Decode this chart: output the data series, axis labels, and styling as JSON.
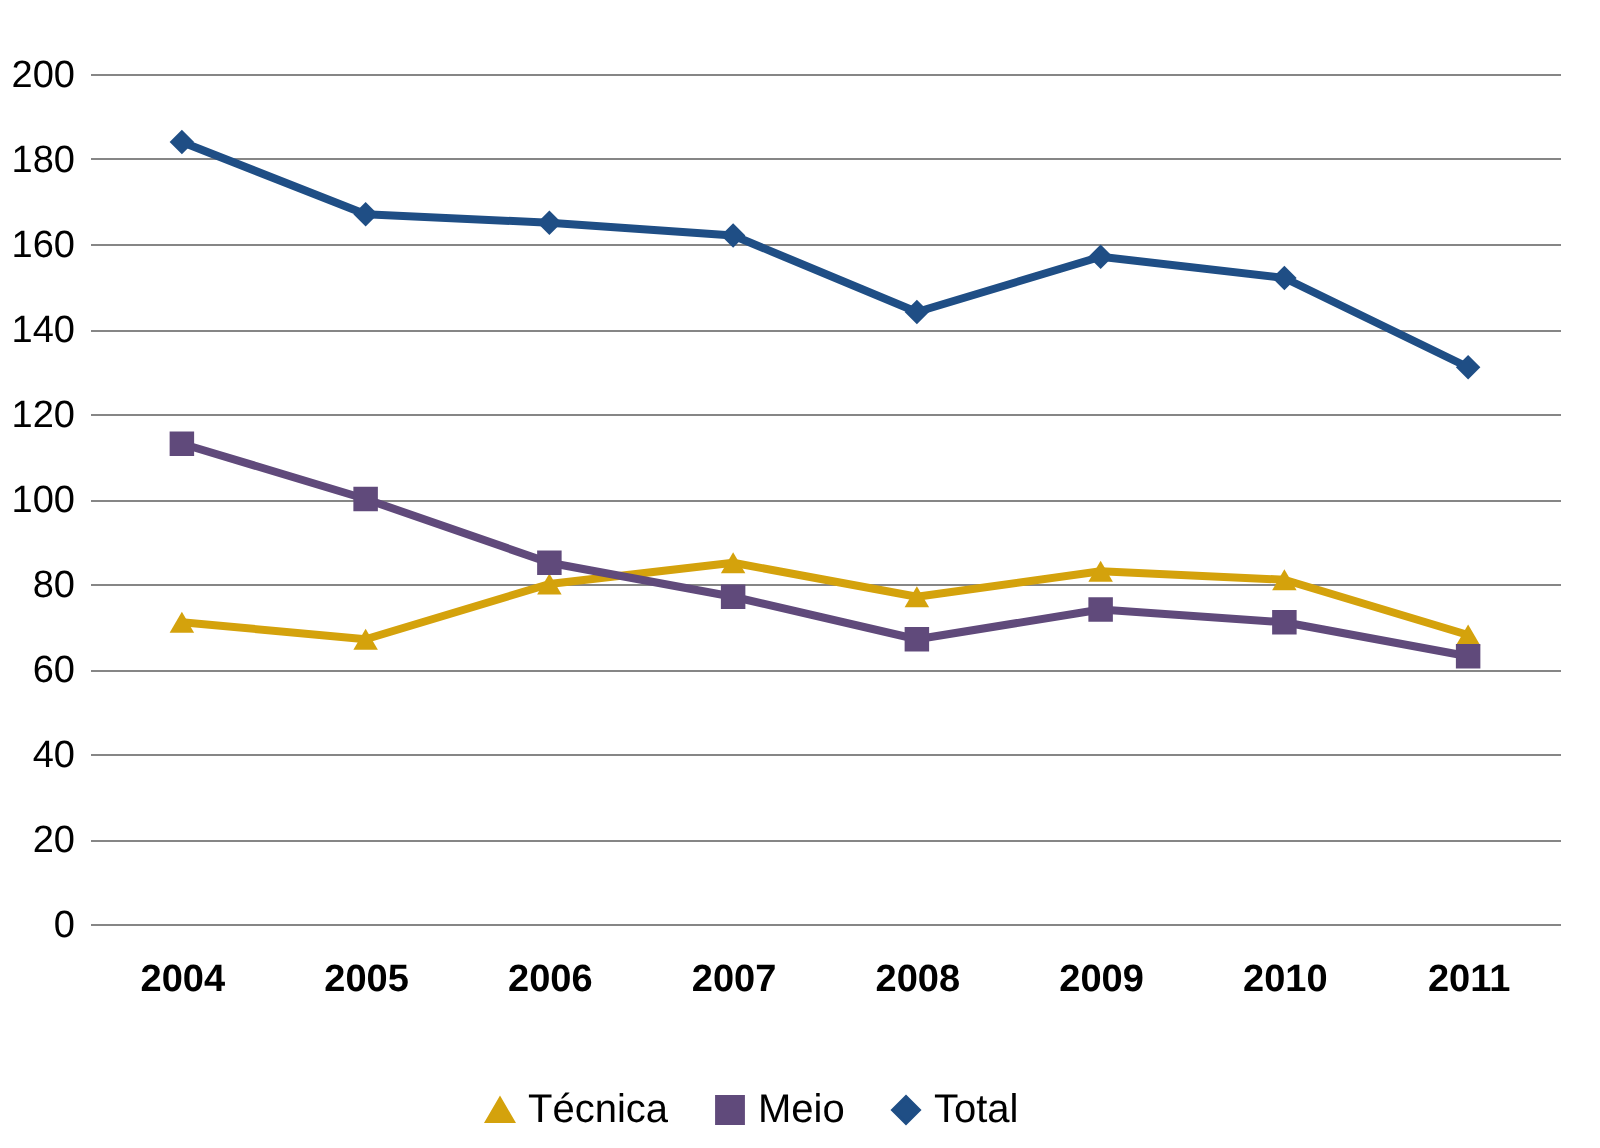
{
  "chart_data": {
    "type": "line",
    "categories": [
      "2004",
      "2005",
      "2006",
      "2007",
      "2008",
      "2009",
      "2010",
      "2011"
    ],
    "series": [
      {
        "name": "Técnica",
        "color": "#d4a20c",
        "marker": "triangle",
        "values": [
          71,
          67,
          80,
          85,
          77,
          83,
          81,
          68
        ]
      },
      {
        "name": "Meio",
        "color": "#604a7b",
        "marker": "square",
        "values": [
          113,
          100,
          85,
          77,
          67,
          74,
          71,
          63
        ]
      },
      {
        "name": "Total",
        "color": "#1f4e85",
        "marker": "diamond",
        "values": [
          184,
          167,
          165,
          162,
          144,
          157,
          152,
          131
        ]
      }
    ],
    "ylim": [
      0,
      200
    ],
    "yticks": [
      0,
      20,
      40,
      60,
      80,
      100,
      120,
      140,
      160,
      180,
      200
    ],
    "grid": "y",
    "legend": "bottom"
  }
}
